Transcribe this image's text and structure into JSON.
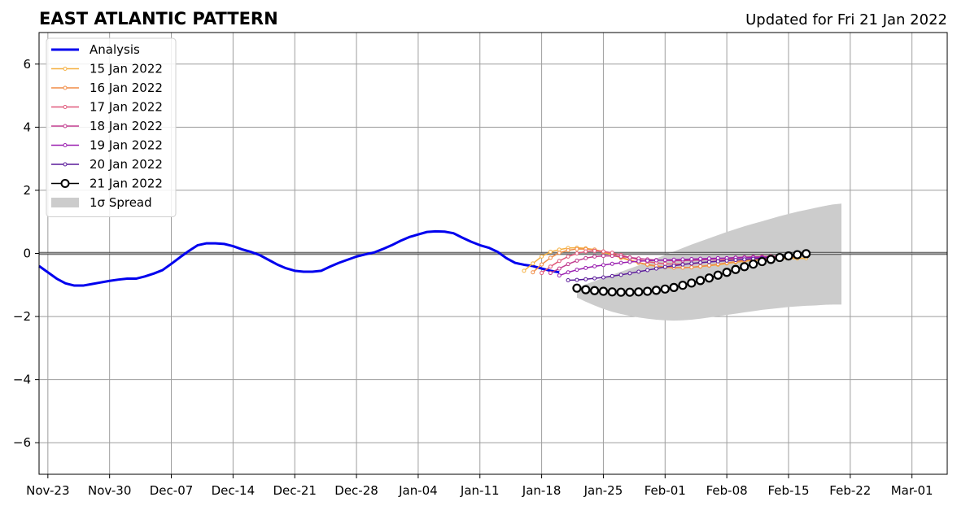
{
  "chart_data": {
    "type": "line",
    "title": "EAST ATLANTIC PATTERN",
    "subtitle": "Updated for Fri 21 Jan 2022",
    "xlabel": "",
    "ylabel": "",
    "xlim": [
      "2021-11-22",
      "2022-03-05"
    ],
    "ylim": [
      -7,
      7
    ],
    "grid": true,
    "legend_position": "top-left",
    "x_ticks": [
      "2021-11-23",
      "2021-11-30",
      "2021-12-07",
      "2021-12-14",
      "2021-12-21",
      "2021-12-28",
      "2022-01-04",
      "2022-01-11",
      "2022-01-18",
      "2022-01-25",
      "2022-02-01",
      "2022-02-08",
      "2022-02-15",
      "2022-02-22",
      "2022-03-01"
    ],
    "x_tick_labels": [
      "Nov-23",
      "Nov-30",
      "Dec-07",
      "Dec-14",
      "Dec-21",
      "Dec-28",
      "Jan-04",
      "Jan-11",
      "Jan-18",
      "Jan-25",
      "Feb-01",
      "Feb-08",
      "Feb-15",
      "Feb-22",
      "Mar-01"
    ],
    "y_ticks": [
      6,
      4,
      2,
      0,
      -2,
      -4,
      -6
    ],
    "y_tick_labels": [
      "6",
      "4",
      "2",
      "0",
      "−2",
      "−4",
      "−6"
    ],
    "series": [
      {
        "name": "Analysis",
        "color": "#0000ee",
        "style": "line",
        "start": "2021-11-22",
        "values": [
          -0.4,
          -0.6,
          -0.8,
          -0.95,
          -1.02,
          -1.02,
          -0.97,
          -0.92,
          -0.87,
          -0.83,
          -0.8,
          -0.8,
          -0.73,
          -0.64,
          -0.53,
          -0.33,
          -0.12,
          0.08,
          0.26,
          0.32,
          0.32,
          0.3,
          0.23,
          0.13,
          0.05,
          -0.05,
          -0.2,
          -0.35,
          -0.47,
          -0.55,
          -0.58,
          -0.58,
          -0.55,
          -0.42,
          -0.3,
          -0.2,
          -0.1,
          -0.03,
          0.03,
          0.14,
          0.26,
          0.4,
          0.52,
          0.6,
          0.68,
          0.7,
          0.69,
          0.64,
          0.5,
          0.37,
          0.26,
          0.18,
          0.05,
          -0.15,
          -0.3,
          -0.36,
          -0.4,
          -0.48,
          -0.55,
          -0.6
        ]
      },
      {
        "name": "15 Jan 2022",
        "color": "#f5b041",
        "style": "small-markers",
        "start": "2022-01-16",
        "values": [
          -0.55,
          -0.32,
          -0.1,
          0.05,
          0.12,
          0.17,
          0.18,
          0.16,
          0.12,
          0.04,
          -0.05,
          -0.14,
          -0.22,
          -0.3,
          -0.36,
          -0.41,
          -0.44,
          -0.45,
          -0.45,
          -0.44,
          -0.42,
          -0.39,
          -0.36,
          -0.32,
          -0.28,
          -0.25,
          -0.22,
          -0.2,
          -0.18,
          -0.17,
          -0.16,
          -0.16,
          -0.15
        ]
      },
      {
        "name": "16 Jan 2022",
        "color": "#f08c46",
        "style": "small-markers",
        "start": "2022-01-17",
        "values": [
          -0.6,
          -0.35,
          -0.14,
          0.02,
          0.1,
          0.14,
          0.14,
          0.12,
          0.06,
          -0.03,
          -0.12,
          -0.21,
          -0.29,
          -0.35,
          -0.4,
          -0.43,
          -0.45,
          -0.45,
          -0.44,
          -0.41,
          -0.38,
          -0.34,
          -0.3,
          -0.26,
          -0.22,
          -0.19,
          -0.17,
          -0.15,
          -0.14,
          -0.13,
          -0.13
        ]
      },
      {
        "name": "17 Jan 2022",
        "color": "#e0587a",
        "style": "small-markers",
        "start": "2022-01-18",
        "values": [
          -0.62,
          -0.42,
          -0.24,
          -0.1,
          0.0,
          0.06,
          0.08,
          0.06,
          0.02,
          -0.05,
          -0.13,
          -0.2,
          -0.26,
          -0.3,
          -0.33,
          -0.34,
          -0.34,
          -0.33,
          -0.3,
          -0.27,
          -0.23,
          -0.19,
          -0.16,
          -0.13,
          -0.11,
          -0.1,
          -0.09,
          -0.09,
          -0.09
        ]
      },
      {
        "name": "18 Jan 2022",
        "color": "#c13b8e",
        "style": "small-markers",
        "start": "2022-01-19",
        "values": [
          -0.62,
          -0.48,
          -0.34,
          -0.23,
          -0.15,
          -0.1,
          -0.08,
          -0.08,
          -0.1,
          -0.13,
          -0.16,
          -0.19,
          -0.21,
          -0.22,
          -0.23,
          -0.23,
          -0.22,
          -0.21,
          -0.19,
          -0.17,
          -0.15,
          -0.13,
          -0.12,
          -0.11,
          -0.11,
          -0.1,
          -0.1
        ]
      },
      {
        "name": "19 Jan 2022",
        "color": "#9a1fb0",
        "style": "small-markers",
        "start": "2022-01-20",
        "values": [
          -0.7,
          -0.6,
          -0.52,
          -0.46,
          -0.41,
          -0.37,
          -0.33,
          -0.3,
          -0.27,
          -0.25,
          -0.23,
          -0.22,
          -0.21,
          -0.2,
          -0.19,
          -0.18,
          -0.17,
          -0.16,
          -0.15,
          -0.15,
          -0.14,
          -0.14,
          -0.13,
          -0.13,
          -0.13
        ]
      },
      {
        "name": "20 Jan 2022",
        "color": "#5a1a9a",
        "style": "small-markers",
        "start": "2022-01-21",
        "values": [
          -0.85,
          -0.84,
          -0.82,
          -0.79,
          -0.76,
          -0.72,
          -0.68,
          -0.63,
          -0.58,
          -0.53,
          -0.48,
          -0.43,
          -0.39,
          -0.35,
          -0.32,
          -0.29,
          -0.27,
          -0.25,
          -0.23,
          -0.21,
          -0.19,
          -0.17,
          -0.15,
          -0.13
        ]
      },
      {
        "name": "21 Jan 2022",
        "color": "#000000",
        "style": "open-circles",
        "start": "2022-01-22",
        "values": [
          -1.1,
          -1.15,
          -1.18,
          -1.2,
          -1.22,
          -1.23,
          -1.23,
          -1.22,
          -1.2,
          -1.17,
          -1.13,
          -1.08,
          -1.01,
          -0.94,
          -0.86,
          -0.78,
          -0.69,
          -0.6,
          -0.51,
          -0.42,
          -0.34,
          -0.26,
          -0.19,
          -0.13,
          -0.08,
          -0.04,
          -0.01
        ]
      }
    ],
    "spread": {
      "name": "1σ Spread",
      "color": "#cccccc",
      "start": "2022-01-22",
      "upper": [
        -1.1,
        -0.98,
        -0.88,
        -0.78,
        -0.68,
        -0.58,
        -0.48,
        -0.38,
        -0.27,
        -0.16,
        -0.05,
        0.06,
        0.17,
        0.28,
        0.38,
        0.48,
        0.58,
        0.68,
        0.77,
        0.86,
        0.94,
        1.02,
        1.1,
        1.18,
        1.25,
        1.32,
        1.38,
        1.44,
        1.5,
        1.55,
        1.58
      ],
      "lower": [
        -1.4,
        -1.53,
        -1.65,
        -1.76,
        -1.85,
        -1.92,
        -1.98,
        -2.03,
        -2.07,
        -2.1,
        -2.12,
        -2.13,
        -2.12,
        -2.1,
        -2.07,
        -2.03,
        -1.99,
        -1.95,
        -1.91,
        -1.87,
        -1.83,
        -1.79,
        -1.76,
        -1.73,
        -1.7,
        -1.68,
        -1.66,
        -1.65,
        -1.63,
        -1.62,
        -1.62
      ]
    }
  }
}
